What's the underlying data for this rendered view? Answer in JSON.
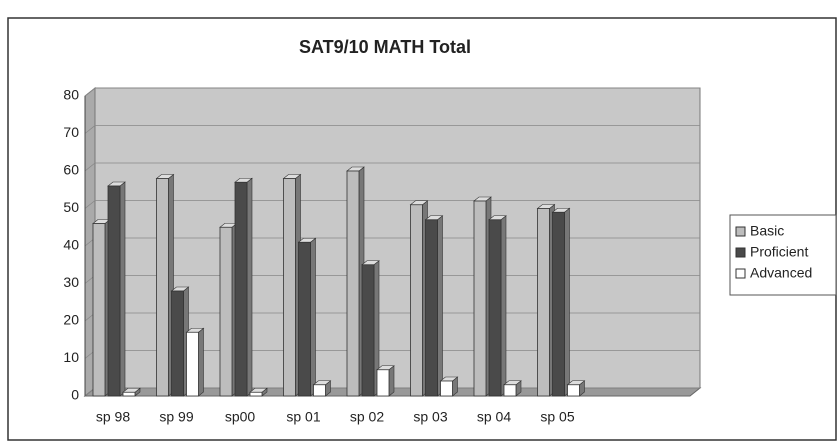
{
  "chart_data": {
    "type": "bar",
    "title": "SAT9/10 MATH Total",
    "categories": [
      "sp 98",
      "sp 99",
      "sp00",
      "sp 01",
      "sp 02",
      "sp 03",
      "sp 04",
      "sp 05"
    ],
    "series": [
      {
        "name": "Basic",
        "color": "#bdbdbd",
        "values": [
          46,
          58,
          45,
          58,
          60,
          51,
          52,
          50
        ]
      },
      {
        "name": "Proficient",
        "color": "#4a4a4a",
        "values": [
          56,
          28,
          57,
          41,
          35,
          47,
          47,
          49
        ]
      },
      {
        "name": "Advanced",
        "color": "#ffffff",
        "values": [
          1,
          17,
          1,
          3,
          7,
          4,
          3,
          3
        ]
      }
    ],
    "ylim": [
      0,
      80
    ],
    "yticks": [
      0,
      10,
      20,
      30,
      40,
      50,
      60,
      70,
      80
    ],
    "grid": true,
    "legend": "right"
  }
}
